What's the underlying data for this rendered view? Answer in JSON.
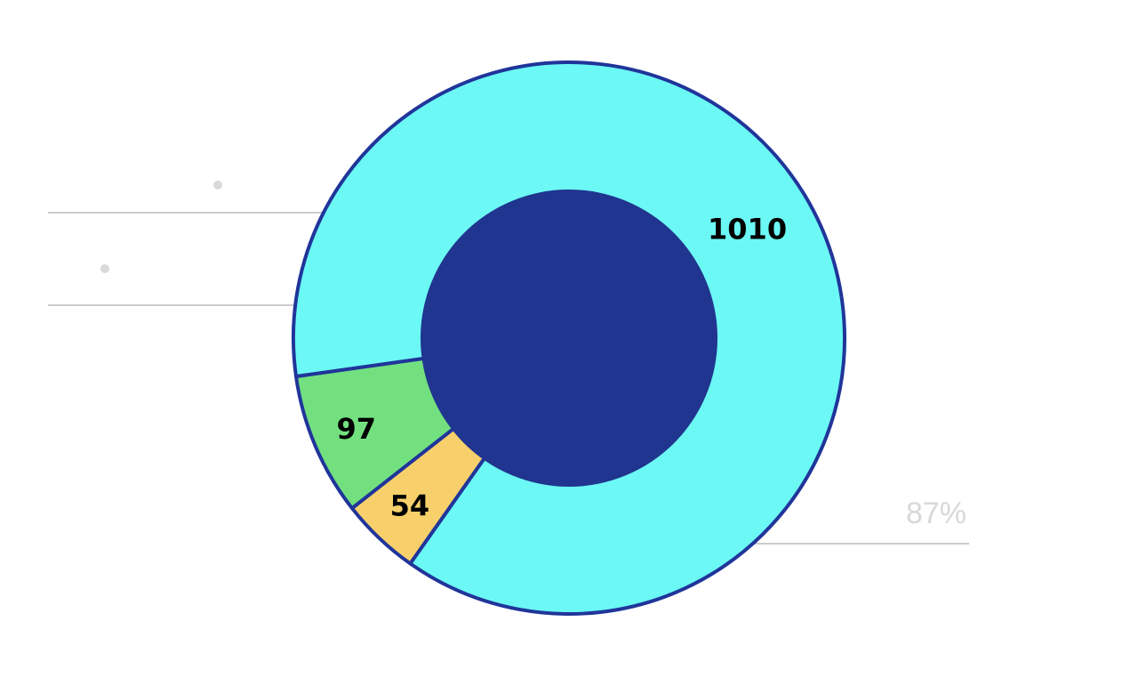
{
  "chart_data": {
    "type": "pie",
    "variant": "donut",
    "slices": [
      {
        "value": 1010,
        "label": "1010",
        "percent_label": "87%",
        "color": "#6cf8f5"
      },
      {
        "value": 54,
        "label": "54",
        "percent_label": "",
        "color": "#f7d06b"
      },
      {
        "value": 97,
        "label": "97",
        "percent_label": "",
        "color": "#73e07f"
      }
    ],
    "center_color": "#20358f",
    "outline_color": "#20359a",
    "leader_line_color": "#cccccc",
    "dot_color": "#d9d9d9"
  }
}
